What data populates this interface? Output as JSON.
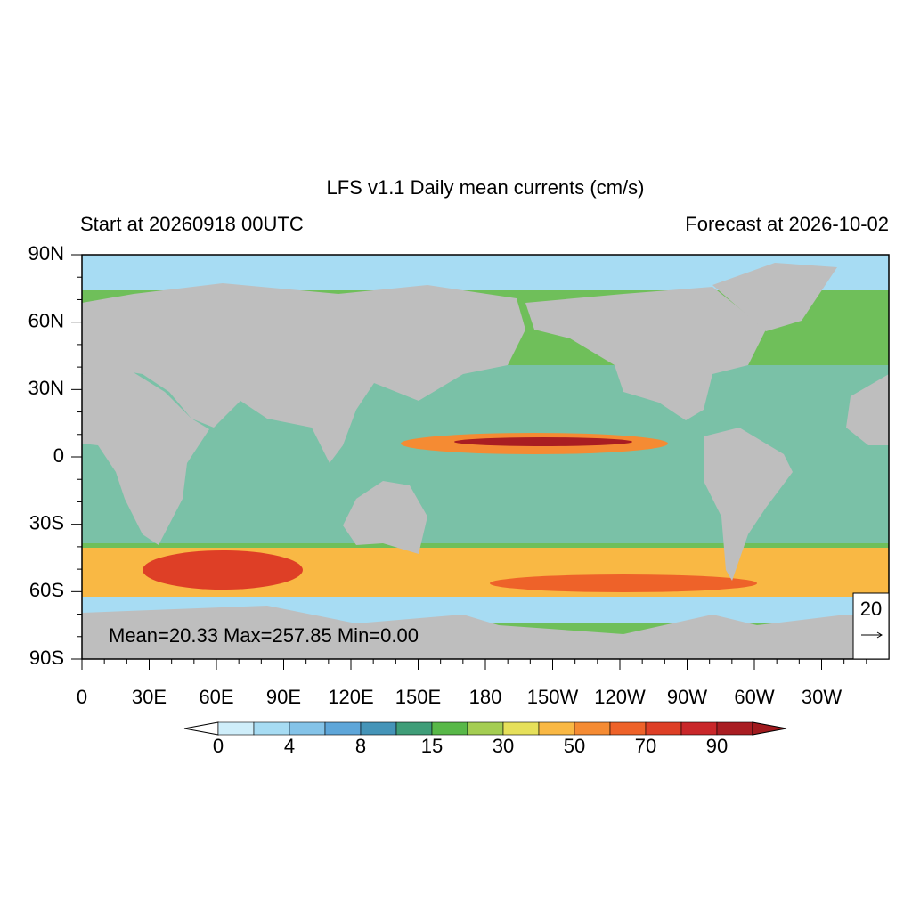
{
  "title": "LFS v1.1 Daily mean currents (cm/s)",
  "left_subtitle": "Start at 20260918 00UTC",
  "right_subtitle": "Forecast at 2026-10-02",
  "stats": "Mean=20.33  Max=257.85  Min=0.00",
  "reference_vector": "20",
  "lon_ticks": [
    {
      "value": 0,
      "label": "0"
    },
    {
      "value": 30,
      "label": "30E"
    },
    {
      "value": 60,
      "label": "60E"
    },
    {
      "value": 90,
      "label": "90E"
    },
    {
      "value": 120,
      "label": "120E"
    },
    {
      "value": 150,
      "label": "150E"
    },
    {
      "value": 180,
      "label": "180"
    },
    {
      "value": 210,
      "label": "150W"
    },
    {
      "value": 240,
      "label": "120W"
    },
    {
      "value": 270,
      "label": "90W"
    },
    {
      "value": 300,
      "label": "60W"
    },
    {
      "value": 330,
      "label": "30W"
    }
  ],
  "lat_ticks": [
    {
      "value": 90,
      "label": "90N"
    },
    {
      "value": 60,
      "label": "60N"
    },
    {
      "value": 30,
      "label": "30N"
    },
    {
      "value": 0,
      "label": "0"
    },
    {
      "value": -30,
      "label": "30S"
    },
    {
      "value": -60,
      "label": "60S"
    },
    {
      "value": -90,
      "label": "90S"
    }
  ],
  "colorbar": {
    "labels": [
      0,
      4,
      8,
      15,
      30,
      50,
      70,
      90
    ],
    "colors": [
      "#cfeefa",
      "#a7dcf3",
      "#84c3e8",
      "#5ea6d9",
      "#4594b8",
      "#3f9d78",
      "#58b848",
      "#a4cd52",
      "#e6e05a",
      "#f9b844",
      "#f58b33",
      "#ee6229",
      "#de3f26",
      "#c9272a",
      "#a91d22"
    ],
    "under_color": "#ffffff",
    "over_color": "#a01a1e"
  }
}
